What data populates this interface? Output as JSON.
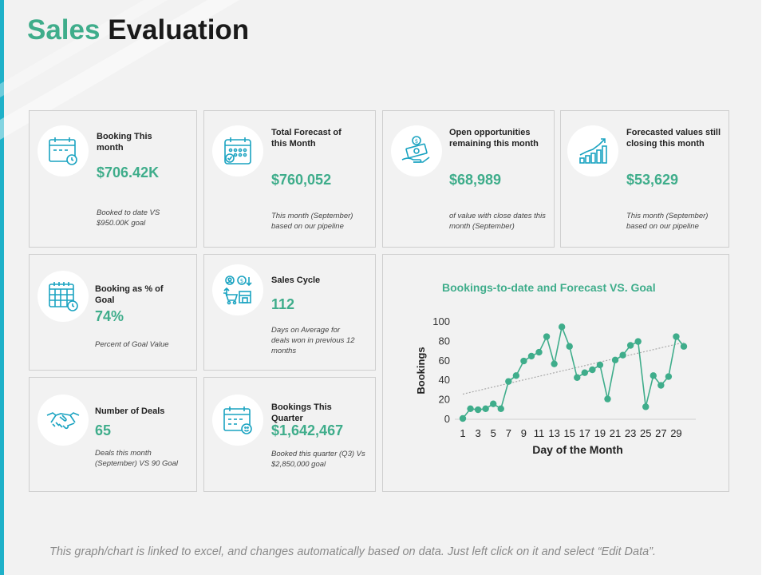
{
  "title": {
    "word1": "Sales",
    "word2": "Evaluation"
  },
  "colors": {
    "accent": "#3fad8b",
    "icon_stroke": "#1aa3c1",
    "frame": "#1fb1c9"
  },
  "cards": [
    {
      "label": "Booking This month",
      "value": "$706.42K",
      "note": "Booked to date VS $950.00K goal",
      "icon": "calendar-clock-icon"
    },
    {
      "label": "Total Forecast of this Month",
      "value": "$760,052",
      "note": "This month (September) based on our pipeline",
      "icon": "calendar-check-icon"
    },
    {
      "label": "Open opportunities remaining this month",
      "value": "$68,989",
      "note": "of value with close dates this month (September)",
      "icon": "money-hand-icon"
    },
    {
      "label": "Forecasted values still closing this month",
      "value": "$53,629",
      "note": "This month (September) based on our pipeline",
      "icon": "growth-chart-icon"
    },
    {
      "label": "Booking as % of Goal",
      "value": "74%",
      "note": "Percent of Goal Value",
      "icon": "calendar-grid-icon"
    },
    {
      "label": "Sales Cycle",
      "value": "112",
      "note": "Days on Average for deals won in previous 12 months",
      "icon": "sales-cycle-icon"
    },
    {
      "label": "Number of Deals",
      "value": "65",
      "note": "Deals this month (September) VS 90 Goal",
      "icon": "handshake-icon"
    },
    {
      "label": "Bookings This Quarter",
      "value": "$1,642,467",
      "note": "Booked this quarter (Q3) Vs $2,850,000 goal",
      "icon": "calendar-quarter-icon"
    }
  ],
  "chart_data": {
    "type": "scatter",
    "title": "Bookings-to-date and Forecast VS. Goal",
    "xlabel": "Day of the Month",
    "ylabel": "Bookings",
    "x": [
      1,
      2,
      3,
      4,
      5,
      6,
      7,
      8,
      9,
      10,
      11,
      12,
      13,
      14,
      15,
      16,
      17,
      18,
      19,
      20,
      21,
      22,
      23,
      24,
      25,
      26,
      27,
      28,
      29,
      30
    ],
    "series": [
      {
        "name": "Bookings",
        "values": [
          0,
          10,
          9,
          10,
          15,
          10,
          38,
          44,
          59,
          64,
          68,
          84,
          56,
          94,
          74,
          42,
          47,
          50,
          55,
          20,
          60,
          65,
          75,
          79,
          12,
          44,
          34,
          43,
          84,
          74
        ]
      }
    ],
    "trendline": [
      [
        1,
        25
      ],
      [
        30,
        78
      ]
    ],
    "xticks": [
      "1",
      "3",
      "5",
      "7",
      "9",
      "11",
      "13",
      "15",
      "17",
      "19",
      "21",
      "23",
      "25",
      "27",
      "29"
    ],
    "yticks": [
      "0",
      "20",
      "40",
      "60",
      "80",
      "100"
    ],
    "ylim": [
      0,
      100
    ],
    "xlim": [
      1,
      30
    ],
    "grid": false,
    "legend": "none"
  },
  "footer": "This graph/chart is linked to excel, and changes automatically based on data. Just left click on it and select “Edit Data”."
}
